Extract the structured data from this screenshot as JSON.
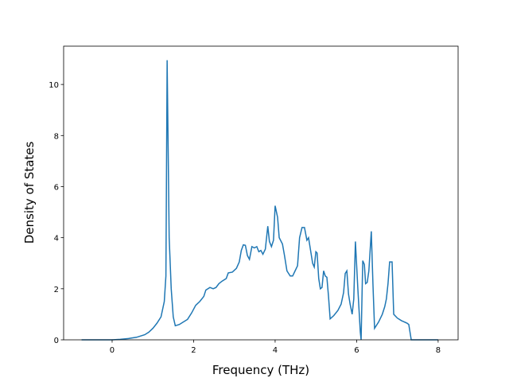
{
  "chart_data": {
    "type": "line",
    "x_label": "Frequency (THz)",
    "y_label": "Density of States",
    "xlim": [
      -1.19,
      8.49
    ],
    "ylim": [
      0,
      11.5
    ],
    "xticks": [
      0,
      2,
      4,
      6,
      8
    ],
    "yticks": [
      0,
      2,
      4,
      6,
      8,
      10
    ],
    "series": [
      {
        "color": "#1f77b4",
        "x": [
          -0.75,
          0,
          0.2,
          0.4,
          0.6,
          0.8,
          0.9,
          1.0,
          1.1,
          1.2,
          1.28,
          1.32,
          1.35,
          1.4,
          1.45,
          1.5,
          1.55,
          1.65,
          1.75,
          1.85,
          1.95,
          2.05,
          2.15,
          2.25,
          2.3,
          2.4,
          2.48,
          2.55,
          2.62,
          2.7,
          2.8,
          2.85,
          2.95,
          3.05,
          3.12,
          3.17,
          3.22,
          3.27,
          3.32,
          3.37,
          3.43,
          3.49,
          3.55,
          3.6,
          3.65,
          3.7,
          3.76,
          3.82,
          3.86,
          3.91,
          3.96,
          4.0,
          4.06,
          4.1,
          4.18,
          4.23,
          4.29,
          4.37,
          4.43,
          4.49,
          4.55,
          4.6,
          4.66,
          4.72,
          4.78,
          4.82,
          4.88,
          4.92,
          4.96,
          5.0,
          5.03,
          5.07,
          5.11,
          5.15,
          5.19,
          5.23,
          5.27,
          5.31,
          5.35,
          5.44,
          5.54,
          5.62,
          5.68,
          5.72,
          5.76,
          5.8,
          5.84,
          5.89,
          5.93,
          5.97,
          6.03,
          6.09,
          6.11,
          6.15,
          6.19,
          6.22,
          6.26,
          6.3,
          6.36,
          6.4,
          6.44,
          6.54,
          6.63,
          6.69,
          6.73,
          6.77,
          6.81,
          6.87,
          6.91,
          7.0,
          7.1,
          7.24,
          7.28,
          7.34,
          8.0
        ],
        "values": [
          0,
          0,
          0.02,
          0.05,
          0.1,
          0.2,
          0.3,
          0.45,
          0.65,
          0.9,
          1.5,
          2.5,
          10.95,
          4.0,
          2.0,
          0.9,
          0.55,
          0.6,
          0.7,
          0.8,
          1.05,
          1.35,
          1.5,
          1.7,
          1.95,
          2.05,
          2.0,
          2.05,
          2.2,
          2.3,
          2.4,
          2.62,
          2.65,
          2.8,
          3.05,
          3.5,
          3.72,
          3.7,
          3.3,
          3.15,
          3.65,
          3.6,
          3.65,
          3.45,
          3.5,
          3.35,
          3.55,
          4.45,
          3.85,
          3.65,
          3.9,
          5.25,
          4.8,
          4.0,
          3.75,
          3.3,
          2.7,
          2.5,
          2.5,
          2.7,
          2.9,
          4.0,
          4.4,
          4.4,
          3.9,
          4.0,
          3.4,
          3.0,
          2.85,
          3.45,
          3.4,
          2.4,
          2.0,
          2.05,
          2.7,
          2.5,
          2.45,
          1.7,
          0.82,
          0.95,
          1.15,
          1.4,
          1.85,
          2.6,
          2.7,
          1.8,
          1.4,
          1.0,
          1.6,
          3.85,
          2.0,
          0.3,
          0.0,
          3.1,
          2.95,
          2.2,
          2.25,
          2.7,
          4.25,
          2.2,
          0.45,
          0.7,
          1.0,
          1.3,
          1.6,
          2.2,
          3.05,
          3.05,
          1.0,
          0.85,
          0.75,
          0.65,
          0.6,
          0.0,
          0.0
        ]
      }
    ]
  }
}
